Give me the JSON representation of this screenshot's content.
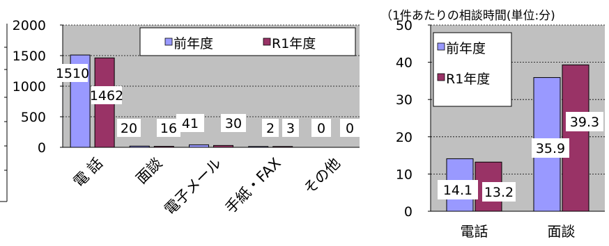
{
  "chart_data": [
    {
      "type": "bar",
      "categories": [
        "電 話",
        "面談",
        "電子メール",
        "手紙・FAX",
        "その他"
      ],
      "series": [
        {
          "name": "前年度",
          "values": [
            1510,
            20,
            41,
            2,
            0
          ],
          "color": "#9999ff"
        },
        {
          "name": "R1年度",
          "values": [
            1462,
            16,
            30,
            3,
            0
          ],
          "color": "#993366"
        }
      ],
      "data_labels": [
        [
          "1510",
          "20",
          "41",
          "2",
          "0"
        ],
        [
          "1462",
          "16",
          "30",
          "3",
          "0"
        ]
      ],
      "yticks": [
        0,
        500,
        1000,
        1500,
        2000
      ],
      "ylim": [
        0,
        2000
      ],
      "title": "",
      "grid": true,
      "legend": "top-right"
    },
    {
      "type": "bar",
      "categories": [
        "電話",
        "面談"
      ],
      "series": [
        {
          "name": "前年度",
          "values": [
            14.1,
            35.9
          ],
          "color": "#9999ff"
        },
        {
          "name": "R1年度",
          "values": [
            13.2,
            39.3
          ],
          "color": "#993366"
        }
      ],
      "data_labels": [
        [
          "14.1",
          "35.9"
        ],
        [
          "13.2",
          "39.3"
        ]
      ],
      "yticks": [
        0,
        10,
        20,
        30,
        40,
        50
      ],
      "ylim": [
        0,
        50
      ],
      "title": "（1件あたりの相談時間(単位:分)",
      "grid": true,
      "legend": "top-left"
    }
  ]
}
